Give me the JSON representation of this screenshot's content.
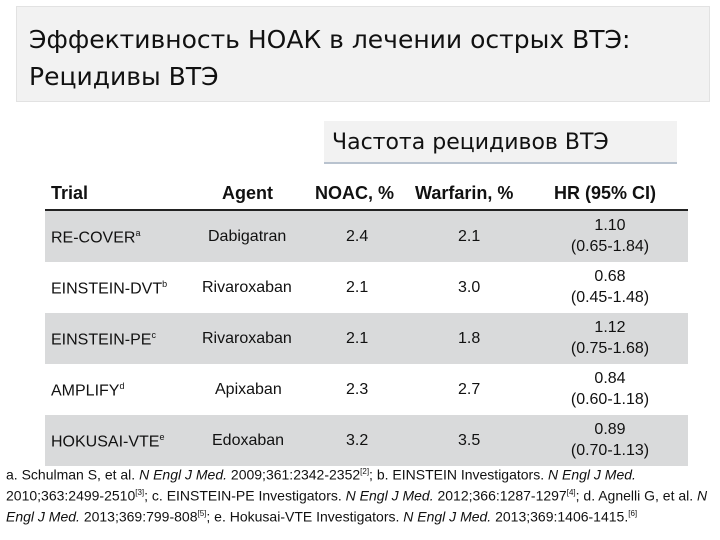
{
  "slide": {
    "title_line1": "Эффективность НОАК в лечении острых ВТЭ:",
    "title_line2": "Рецидивы ВТЭ",
    "subtitle": "Частота рецидивов ВТЭ"
  },
  "table": {
    "headers": {
      "trial": "Trial",
      "agent": "Agent",
      "noac": "NOAC, %",
      "warfarin": "Warfarin, %",
      "hr": "HR (95% CI)"
    },
    "rows": [
      {
        "trial": "RE-COVER",
        "sup": "a",
        "agent": "Dabigatran",
        "noac": "2.4",
        "warfarin": "2.1",
        "hr": "1.10",
        "ci": "(0.65-1.84)"
      },
      {
        "trial": "EINSTEIN-DVT",
        "sup": "b",
        "agent": "Rivaroxaban",
        "noac": "2.1",
        "warfarin": "3.0",
        "hr": "0.68",
        "ci": "(0.45-1.48)"
      },
      {
        "trial": "EINSTEIN-PE",
        "sup": "c",
        "agent": "Rivaroxaban",
        "noac": "2.1",
        "warfarin": "1.8",
        "hr": "1.12",
        "ci": "(0.75-1.68)"
      },
      {
        "trial": "AMPLIFY",
        "sup": "d",
        "agent": "Apixaban",
        "noac": "2.3",
        "warfarin": "2.7",
        "hr": "0.84",
        "ci": "(0.60-1.18)"
      },
      {
        "trial": "HOKUSAI-VTE",
        "sup": "e",
        "agent": "Edoxaban",
        "noac": "3.2",
        "warfarin": "3.5",
        "hr": "0.89",
        "ci": "(0.70-1.13)"
      }
    ]
  },
  "references": {
    "a": "a. Schulman S, et al. ",
    "a_journal": "N Engl J Med.",
    "a_cite": " 2009;361:2342-2352",
    "a_sup": "[2]",
    "b": "; b. EINSTEIN Investigators. ",
    "b_journal": "N Engl J Med.",
    "b_cite": " 2010;363:2499-2510",
    "b_sup": "[3]",
    "c": "; c. EINSTEIN-PE Investigators. ",
    "c_journal": "N Engl J Med.",
    "c_cite": " 2012;366:1287-1297",
    "c_sup": "[4]",
    "d": "; d. Agnelli G, et al. ",
    "d_journal": "N Engl J Med.",
    "d_cite": " 2013;369:799-808",
    "d_sup": "[5]",
    "e": "; e. Hokusai-VTE Investigators. ",
    "e_journal": "N Engl J Med.",
    "e_cite": " 2013;369:1406-1415.",
    "e_sup": "[6]"
  }
}
